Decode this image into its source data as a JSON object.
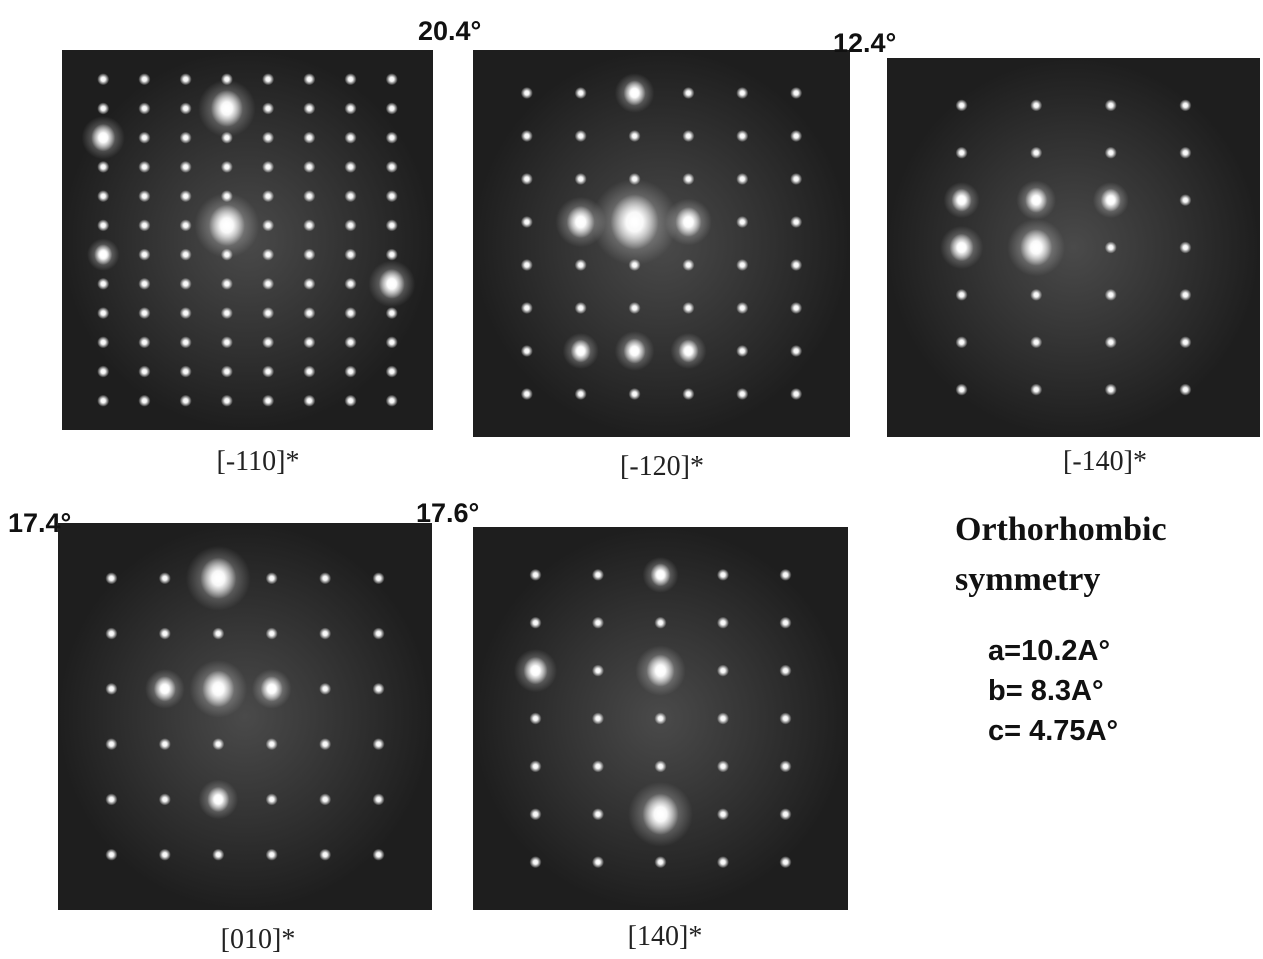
{
  "angles": [
    "20.4°",
    "12.4°",
    "17.4°",
    "17.6°"
  ],
  "patterns": [
    {
      "label": "[-110]*"
    },
    {
      "label": "[-120]*"
    },
    {
      "label": "[-140]*"
    },
    {
      "label": "[010]*"
    },
    {
      "label": "[140]*"
    }
  ],
  "symmetry": {
    "title": "Orthorhombic",
    "subtitle": "symmetry",
    "parameters": [
      "a=10.2A°",
      "b= 8.3A°",
      "c= 4.75A°"
    ]
  }
}
